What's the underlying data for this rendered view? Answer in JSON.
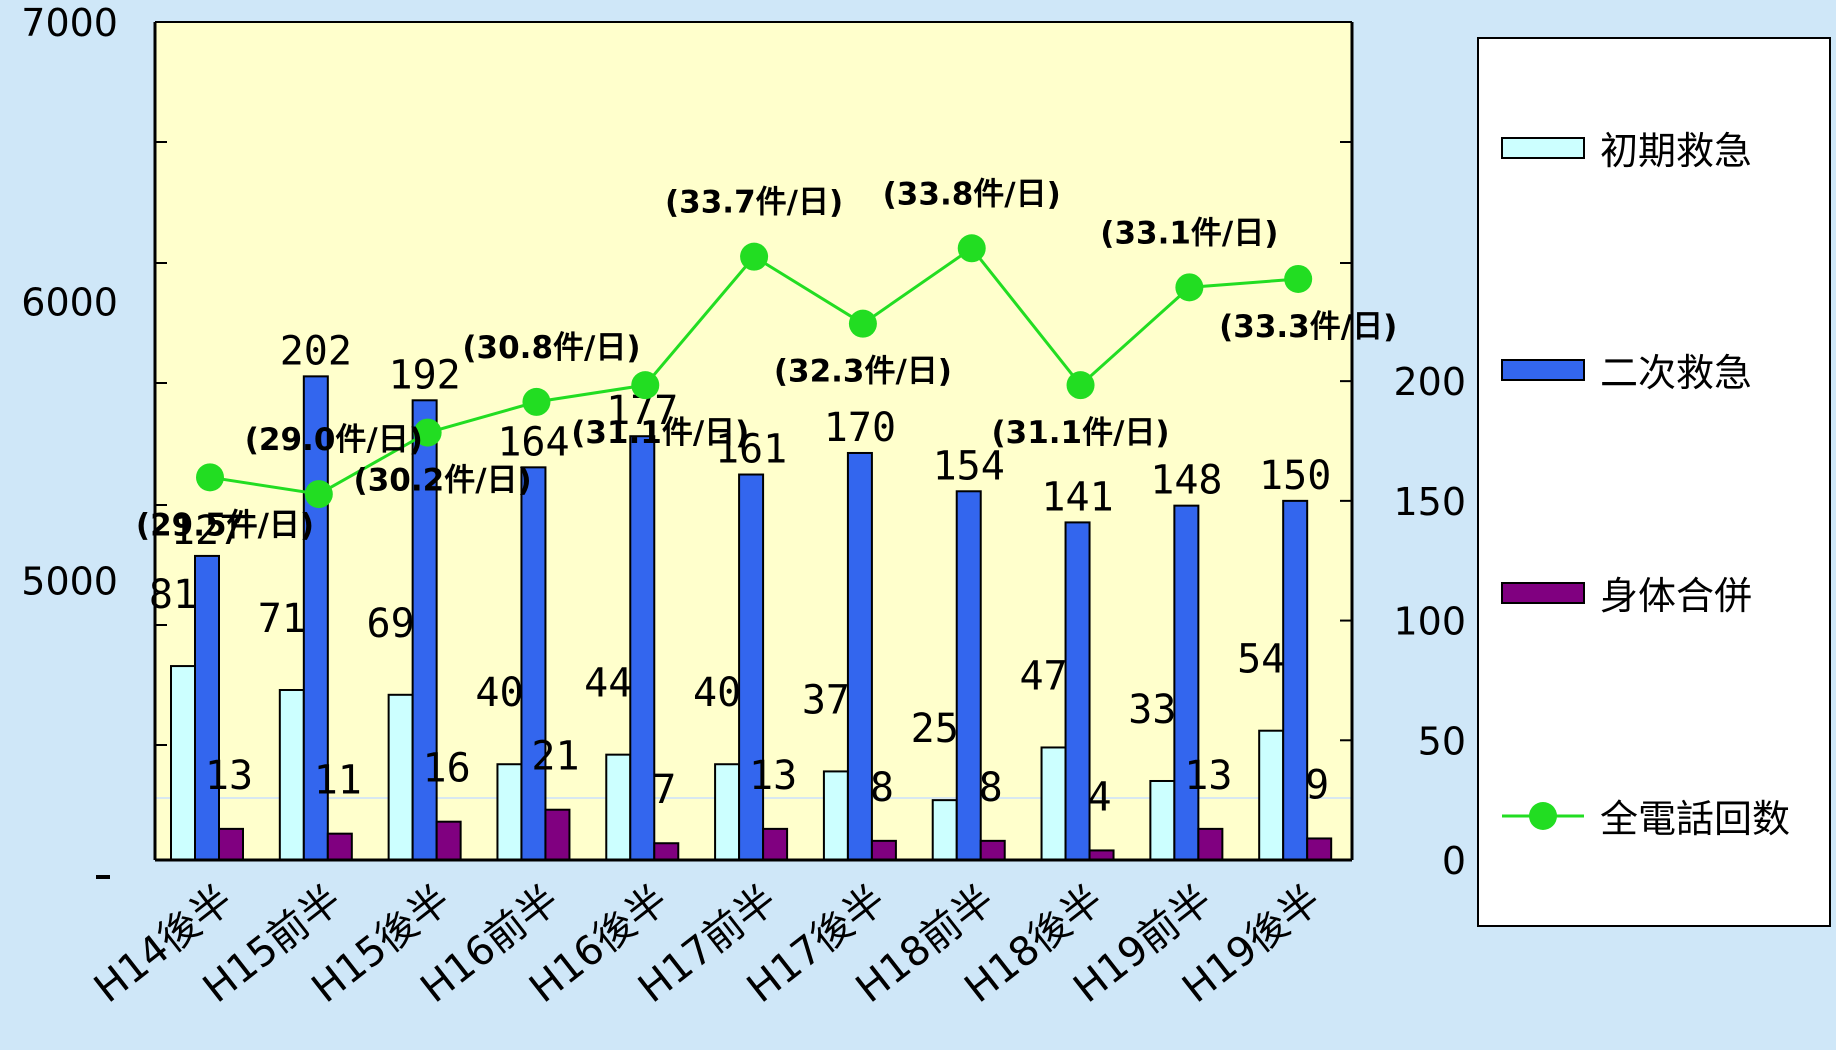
{
  "colors": {
    "background": "#cfe7f8",
    "plot_area": "#ffffcc",
    "initial": "#ccffff",
    "secondary": "#3366ee",
    "physical": "#800080",
    "total_line": "#22dd22"
  },
  "chart_data": {
    "type": "bar",
    "categories": [
      "H14後半",
      "H15前半",
      "H15後半",
      "H16前半",
      "H16後半",
      "H17前半",
      "H17後半",
      "H18前半",
      "H18後半",
      "H19前半",
      "H19後半"
    ],
    "series": [
      {
        "name": "初期救急",
        "type": "bar",
        "axis": "right",
        "values": [
          81,
          71,
          69,
          40,
          44,
          40,
          37,
          25,
          47,
          33,
          54
        ]
      },
      {
        "name": "二次救急",
        "type": "bar",
        "axis": "right",
        "values": [
          127,
          202,
          192,
          164,
          177,
          161,
          170,
          154,
          141,
          148,
          150
        ]
      },
      {
        "name": "身体合併",
        "type": "bar",
        "axis": "right",
        "values": [
          13,
          11,
          16,
          21,
          7,
          13,
          8,
          8,
          4,
          13,
          9
        ]
      },
      {
        "name": "全電話回数",
        "type": "line",
        "axis": "left",
        "values": [
          5370,
          5310,
          5530,
          5640,
          5700,
          6160,
          5920,
          6190,
          5700,
          6050,
          6080
        ],
        "annotations": [
          "(29.5件/日)",
          "(29.0件/日)",
          "(30.2件/日)",
          "(30.8件/日)",
          "(31.1件/日)",
          "(33.7件/日)",
          "(32.3件/日)",
          "(33.8件/日)",
          "(31.1件/日)",
          "(33.1件/日)",
          "(33.3件/日)"
        ]
      }
    ],
    "left_axis": {
      "ticks": [
        "5000",
        "6000",
        "7000"
      ],
      "range": [
        4000,
        7000
      ]
    },
    "right_axis": {
      "ticks": [
        "0",
        "50",
        "100",
        "150",
        "200"
      ],
      "range": [
        0,
        350
      ]
    },
    "legend": {
      "position": "right"
    }
  }
}
